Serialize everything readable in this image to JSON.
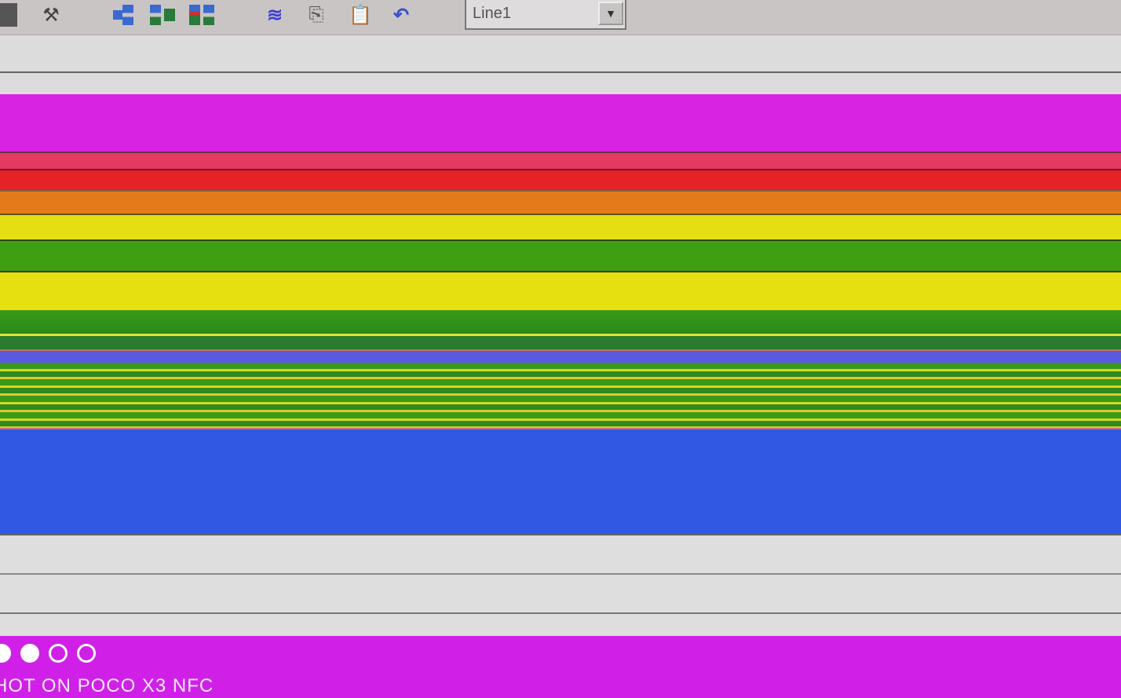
{
  "toolbar": {
    "icons": [
      "save-icon",
      "build-tools-icon",
      "layout-step-1-icon",
      "layout-step-2-icon",
      "layout-step-3-icon",
      "layout-step-4-icon",
      "waveform-icon",
      "copy-icon",
      "paste-icon",
      "undo-icon"
    ],
    "line_select": {
      "value": "Line1"
    }
  },
  "display": {
    "band_colors": [
      "#d824e2",
      "#e33a62",
      "#e42228",
      "#e57a1a",
      "#e4de12",
      "#3f9f12",
      "#e6e010",
      "#2a8a1a",
      "#5a5ae0",
      "#3a9a18",
      "#3058e2"
    ]
  },
  "overlay": {
    "watermark": "HOT ON POCO X3 NFC",
    "page_dots": [
      true,
      true,
      false,
      false
    ]
  }
}
